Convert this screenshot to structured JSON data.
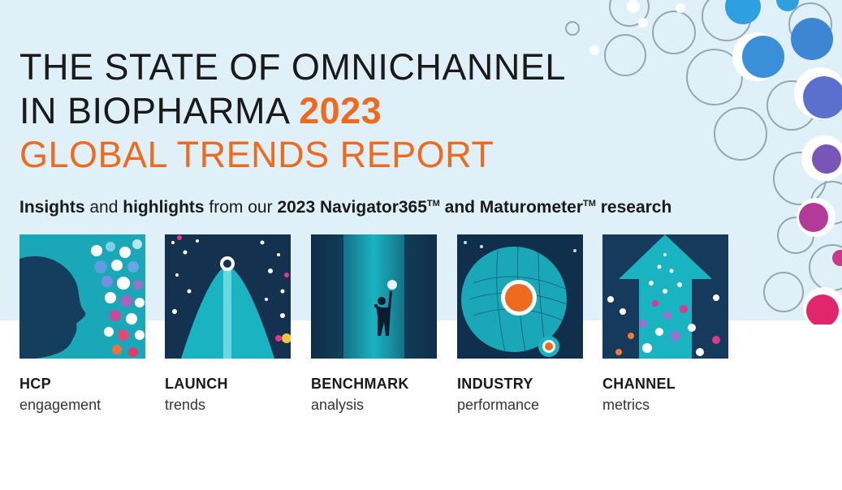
{
  "title": {
    "line1": "THE STATE OF OMNICHANNEL",
    "line2_prefix": "IN BIOPHARMA",
    "year": "2023",
    "line3": "GLOBAL TRENDS REPORT"
  },
  "tagline": {
    "w1": "Insights",
    "w2": "and",
    "w3": "highlights",
    "w4": "from our",
    "w5": "2023 Navigator365",
    "tm1": "TM",
    "w6": "and Maturometer",
    "tm2": "TM",
    "w7": "research"
  },
  "cards": [
    {
      "title": "HCP",
      "subtitle": "engagement"
    },
    {
      "title": "LAUNCH",
      "subtitle": "trends"
    },
    {
      "title": "BENCHMARK",
      "subtitle": "analysis"
    },
    {
      "title": "INDUSTRY",
      "subtitle": "performance"
    },
    {
      "title": "CHANNEL",
      "subtitle": "metrics"
    }
  ],
  "colors": {
    "accent_orange": "#ee6a1f",
    "teal": "#1aa8b8",
    "navy": "#163a5c",
    "background_light_blue": "#dff0f8"
  }
}
